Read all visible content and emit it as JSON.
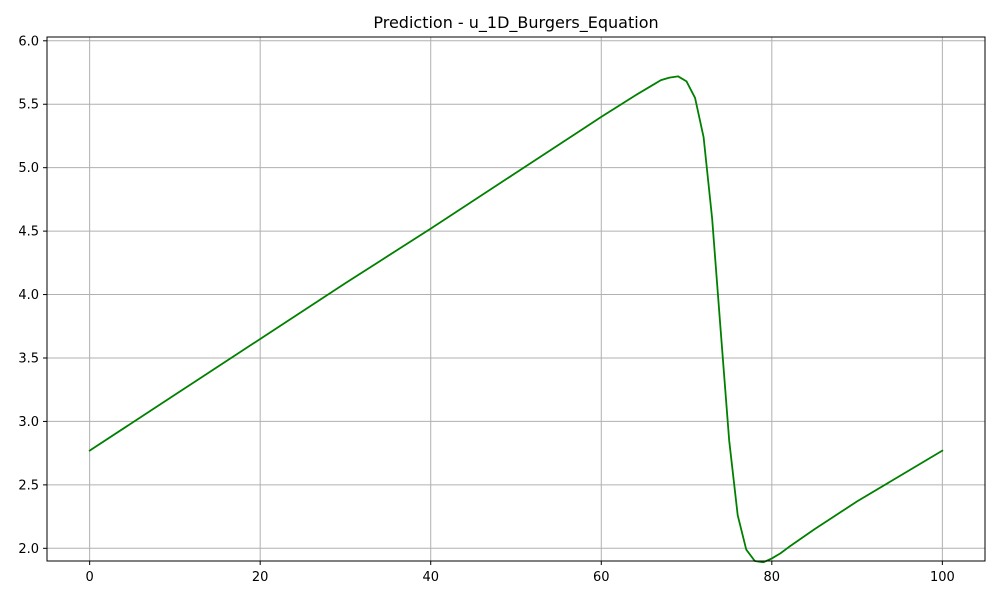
{
  "chart_data": {
    "type": "line",
    "title": "Prediction - u_1D_Burgers_Equation",
    "xlabel": "",
    "ylabel": "",
    "xlim": [
      -5,
      105
    ],
    "ylim": [
      1.9,
      6.03
    ],
    "x_ticks": [
      0,
      20,
      40,
      60,
      80,
      100
    ],
    "y_ticks": [
      2.0,
      2.5,
      3.0,
      3.5,
      4.0,
      4.5,
      5.0,
      5.5,
      6.0
    ],
    "x_tick_labels": [
      "0",
      "20",
      "40",
      "60",
      "80",
      "100"
    ],
    "y_tick_labels": [
      "2.0",
      "2.5",
      "3.0",
      "3.5",
      "4.0",
      "4.5",
      "5.0",
      "5.5",
      "6.0"
    ],
    "grid": true,
    "legend": "none",
    "series": [
      {
        "color": "#008000",
        "x": [
          0,
          10,
          20,
          30,
          40,
          50,
          60,
          64,
          66,
          67,
          68,
          69,
          70,
          71,
          72,
          73,
          74,
          75,
          76,
          77,
          78,
          79,
          80,
          81,
          82,
          85,
          90,
          95,
          100
        ],
        "y": [
          2.77,
          3.21,
          3.65,
          4.09,
          4.52,
          4.96,
          5.4,
          5.57,
          5.65,
          5.69,
          5.71,
          5.72,
          5.68,
          5.55,
          5.24,
          4.6,
          3.72,
          2.85,
          2.26,
          1.99,
          1.9,
          1.89,
          1.92,
          1.96,
          2.01,
          2.15,
          2.37,
          2.57,
          2.77
        ]
      }
    ]
  }
}
